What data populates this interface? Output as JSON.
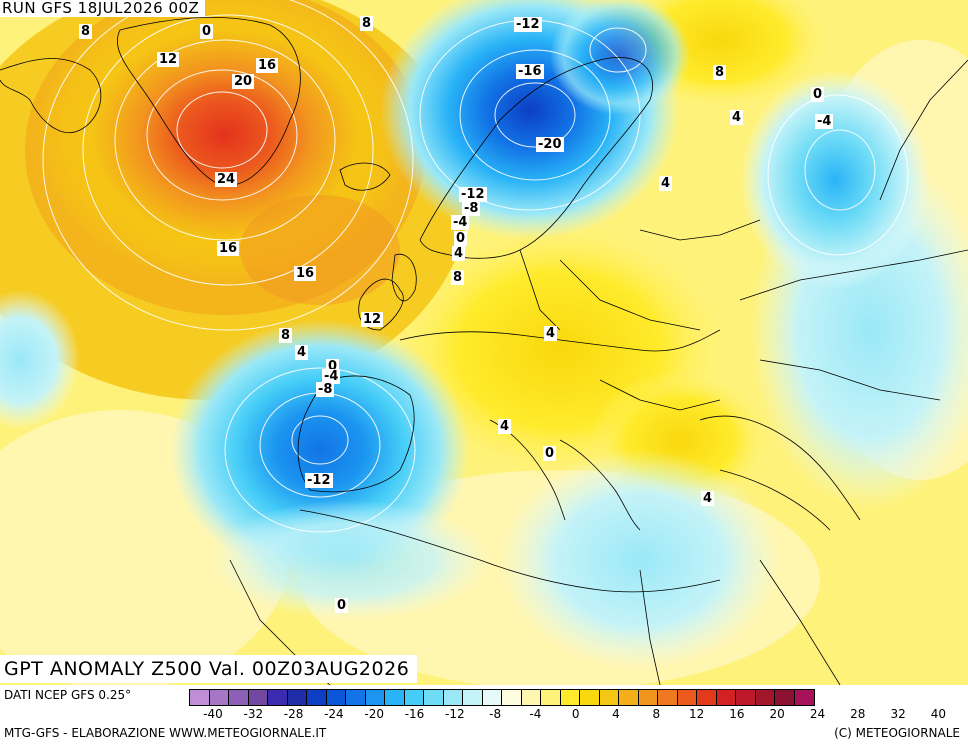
{
  "header": {
    "run_title": "RUN GFS 18JUL2026 00Z"
  },
  "map": {
    "title": "GPT ANOMALY Z500 Val. 00Z03AUG2026",
    "contour_labels": [
      "8",
      "0",
      "8",
      "12",
      "16",
      "20",
      "24",
      "16",
      "16",
      "12",
      "8",
      "4",
      "0",
      "-4",
      "-8",
      "-12",
      "0",
      "-12",
      "-16",
      "-20",
      "-12",
      "-8",
      "-4",
      "0",
      "4",
      "8",
      "8",
      "4",
      "4",
      "0",
      "-4",
      "4",
      "4",
      "0",
      "4"
    ]
  },
  "footer": {
    "data_source": "DATI NCEP GFS 0.25°",
    "credit_left": "MTG-GFS - ELABORAZIONE WWW.METEOGIORNALE.IT",
    "credit_right": "(C) METEOGIORNALE"
  },
  "colorbar": {
    "colors": [
      "#c08ed6",
      "#a776c6",
      "#8e5fb6",
      "#7448a0",
      "#3b2bb0",
      "#1f2ea8",
      "#0c3fc4",
      "#0a55d8",
      "#1274e6",
      "#1b95f0",
      "#29b4f7",
      "#45cdf7",
      "#6fdcf6",
      "#9ae8f7",
      "#c4f3f8",
      "#e6fbf9",
      "#fffde0",
      "#fff6b0",
      "#fff27a",
      "#ffeb2c",
      "#f9d80d",
      "#f5c614",
      "#f3ae1a",
      "#f2951f",
      "#ef7820",
      "#ec5a1e",
      "#e43a1c",
      "#d42222",
      "#c0182b",
      "#a3152b",
      "#8d1232",
      "#a7125a"
    ],
    "tick_labels": [
      "-40",
      "-32",
      "-28",
      "-24",
      "-20",
      "-16",
      "-12",
      "-8",
      "-4",
      "0",
      "4",
      "8",
      "12",
      "16",
      "20",
      "24",
      "28",
      "32",
      "40"
    ]
  }
}
